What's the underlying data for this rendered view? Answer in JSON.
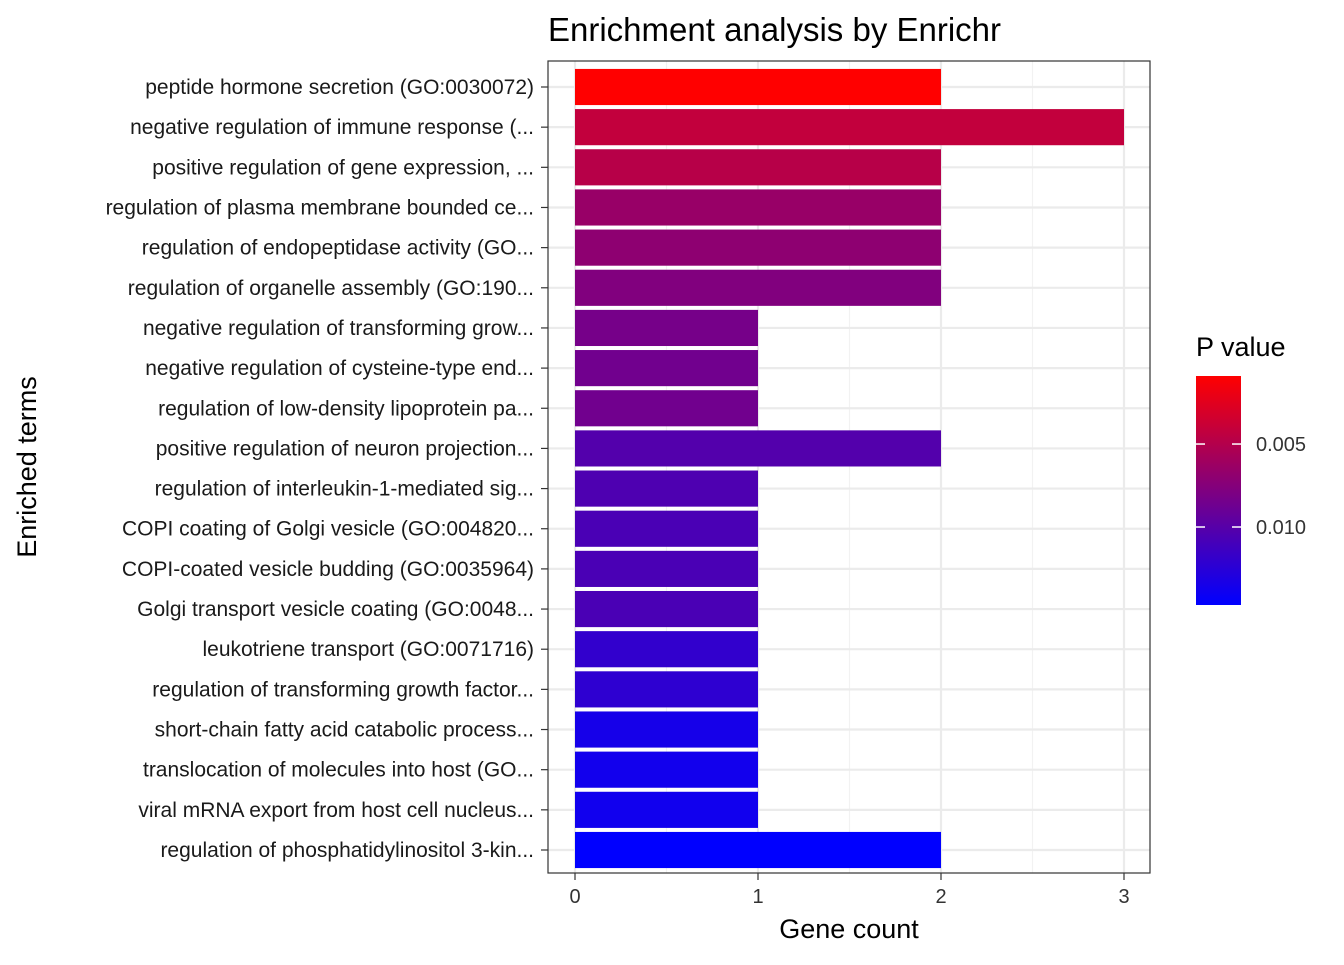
{
  "chart_data": {
    "type": "bar",
    "orientation": "horizontal",
    "title": "Enrichment analysis by Enrichr",
    "xlabel": "Gene count",
    "ylabel": "Enriched terms",
    "xlim": [
      0,
      3
    ],
    "x_ticks": [
      0,
      1,
      2,
      3
    ],
    "x_tick_labels": [
      "0",
      "1",
      "2",
      "3"
    ],
    "grid": true,
    "legend_position": "right",
    "legend": {
      "title": "P value",
      "type": "colorbar",
      "range": [
        0.0009,
        0.0147
      ],
      "ticks": [
        0.005,
        0.01
      ],
      "tick_labels": [
        "0.005",
        "0.010"
      ],
      "low_color": "#FF0000",
      "high_color": "#0000FF"
    },
    "categories": [
      "peptide hormone secretion (GO:0030072)",
      "negative regulation of immune response (...",
      "positive regulation of gene expression, ...",
      "regulation of plasma membrane bounded ce...",
      "regulation of endopeptidase activity (GO...",
      "regulation of organelle assembly (GO:190...",
      "negative regulation of transforming grow...",
      "negative regulation of cysteine-type end...",
      "regulation of low-density lipoprotein pa...",
      "positive regulation of neuron projection...",
      "regulation of interleukin-1-mediated sig...",
      "COPI coating of Golgi vesicle (GO:004820...",
      "COPI-coated vesicle budding (GO:0035964)",
      "Golgi transport vesicle coating (GO:0048...",
      "leukotriene transport (GO:0071716)",
      "regulation of transforming growth factor...",
      "short-chain fatty acid catabolic process...",
      "translocation of molecules into host (GO...",
      "viral mRNA export from host cell nucleus...",
      "regulation of phosphatidylinositol 3-kin..."
    ],
    "values": [
      2,
      3,
      2,
      2,
      2,
      2,
      1,
      1,
      1,
      2,
      1,
      1,
      1,
      1,
      1,
      1,
      1,
      1,
      1,
      2
    ],
    "p_values": [
      0.0009,
      0.0042,
      0.0048,
      0.0065,
      0.007,
      0.0077,
      0.0083,
      0.0086,
      0.0086,
      0.0102,
      0.0105,
      0.0107,
      0.0107,
      0.0107,
      0.012,
      0.0122,
      0.0135,
      0.0137,
      0.0138,
      0.0147
    ]
  }
}
